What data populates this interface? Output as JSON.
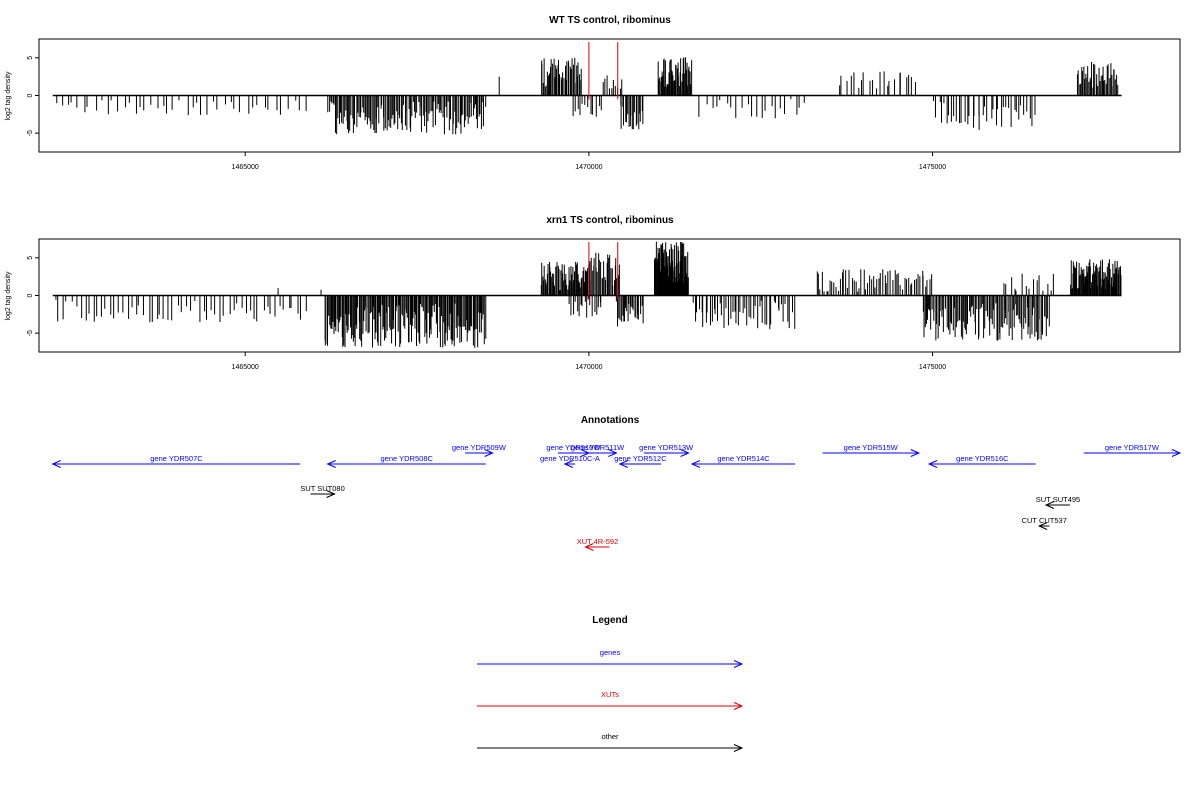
{
  "chart_data": [
    {
      "type": "bar",
      "title": "WT TS control, ribominus",
      "ylabel": "log2 tag density",
      "xlabel": "",
      "xlim": [
        1462000,
        1478600
      ],
      "ylim": [
        -7.5,
        7.5
      ],
      "yticks": [
        -5,
        0,
        5
      ],
      "xticks": [
        1465000,
        1470000,
        1475000
      ],
      "xtick_labels": [
        "1465000",
        "1470000",
        "1475000"
      ],
      "marker_lines": [
        1470000,
        1470420
      ],
      "marker_color": "#e00000",
      "grid": false,
      "regions": [
        {
          "start": 1462200,
          "end": 1465900,
          "sign": -1,
          "max": 2.6,
          "density": 45
        },
        {
          "start": 1466200,
          "end": 1468500,
          "sign": -1,
          "max": 5.2,
          "density": 130
        },
        {
          "start": 1468650,
          "end": 1468700,
          "sign": 1,
          "max": 2.6,
          "density": 1
        },
        {
          "start": 1469300,
          "end": 1469900,
          "sign": 1,
          "max": 5.0,
          "density": 40
        },
        {
          "start": 1469750,
          "end": 1470200,
          "sign": -1,
          "max": 3.0,
          "density": 12
        },
        {
          "start": 1470200,
          "end": 1470500,
          "sign": 1,
          "max": 2.8,
          "density": 10
        },
        {
          "start": 1470450,
          "end": 1470800,
          "sign": -1,
          "max": 4.5,
          "density": 20
        },
        {
          "start": 1471000,
          "end": 1471500,
          "sign": 1,
          "max": 5.2,
          "density": 45
        },
        {
          "start": 1471600,
          "end": 1473200,
          "sign": -1,
          "max": 3.2,
          "density": 22
        },
        {
          "start": 1473600,
          "end": 1474800,
          "sign": 1,
          "max": 3.2,
          "density": 22
        },
        {
          "start": 1475000,
          "end": 1476500,
          "sign": -1,
          "max": 4.6,
          "density": 40
        },
        {
          "start": 1477100,
          "end": 1477700,
          "sign": 1,
          "max": 4.5,
          "density": 40
        }
      ]
    },
    {
      "type": "bar",
      "title": "xrn1 TS control, ribominus",
      "ylabel": "log2 tag density",
      "xlabel": "",
      "xlim": [
        1462000,
        1478600
      ],
      "ylim": [
        -7.5,
        7.5
      ],
      "yticks": [
        -5,
        0,
        5
      ],
      "xticks": [
        1465000,
        1470000,
        1475000
      ],
      "xtick_labels": [
        "1465000",
        "1470000",
        "1475000"
      ],
      "marker_lines": [
        1470000,
        1470420
      ],
      "marker_color": "#e00000",
      "grid": false,
      "regions": [
        {
          "start": 1462200,
          "end": 1465900,
          "sign": -1,
          "max": 3.6,
          "density": 60
        },
        {
          "start": 1465400,
          "end": 1465500,
          "sign": 1,
          "max": 1.6,
          "density": 1
        },
        {
          "start": 1466100,
          "end": 1466200,
          "sign": 1,
          "max": 1.4,
          "density": 1
        },
        {
          "start": 1466150,
          "end": 1468500,
          "sign": -1,
          "max": 7.0,
          "density": 170
        },
        {
          "start": 1469300,
          "end": 1470000,
          "sign": 1,
          "max": 4.5,
          "density": 60
        },
        {
          "start": 1469700,
          "end": 1470200,
          "sign": -1,
          "max": 3.0,
          "density": 18
        },
        {
          "start": 1470000,
          "end": 1470450,
          "sign": 1,
          "max": 6.0,
          "density": 30
        },
        {
          "start": 1470400,
          "end": 1470800,
          "sign": -1,
          "max": 4.5,
          "density": 25
        },
        {
          "start": 1470950,
          "end": 1471450,
          "sign": 1,
          "max": 7.2,
          "density": 80
        },
        {
          "start": 1471500,
          "end": 1473000,
          "sign": -1,
          "max": 4.5,
          "density": 50
        },
        {
          "start": 1473300,
          "end": 1475000,
          "sign": 1,
          "max": 3.5,
          "density": 60
        },
        {
          "start": 1474850,
          "end": 1476700,
          "sign": -1,
          "max": 6.0,
          "density": 110
        },
        {
          "start": 1476000,
          "end": 1476800,
          "sign": 1,
          "max": 3.0,
          "density": 15
        },
        {
          "start": 1477000,
          "end": 1477750,
          "sign": 1,
          "max": 5.0,
          "density": 80
        }
      ]
    }
  ],
  "annotations": {
    "title": "Annotations",
    "xlim": [
      1462000,
      1478600
    ],
    "items": [
      {
        "label": "gene YDR507C",
        "start": 1465800,
        "end": 1462200,
        "row": 1,
        "color": "#0000ff"
      },
      {
        "label": "gene YDR508C",
        "start": 1468500,
        "end": 1466200,
        "row": 1,
        "color": "#0000ff"
      },
      {
        "label": "gene YDR509W",
        "start": 1468200,
        "end": 1468600,
        "row": 0,
        "color": "#0000ff"
      },
      {
        "label": "gene YDR510W",
        "start": 1469550,
        "end": 1470000,
        "row": 0,
        "color": "#0000ff"
      },
      {
        "label": "gene YDR511W",
        "start": 1469850,
        "end": 1470400,
        "row": 0,
        "color": "#0000ff"
      },
      {
        "label": "gene YDR510C-A",
        "start": 1469800,
        "end": 1469650,
        "row": 1,
        "color": "#0000ff"
      },
      {
        "label": "gene YDR512C",
        "start": 1471050,
        "end": 1470450,
        "row": 1,
        "color": "#0000ff"
      },
      {
        "label": "gene YDR513W",
        "start": 1470800,
        "end": 1471450,
        "row": 0,
        "color": "#0000ff"
      },
      {
        "label": "gene YDR514C",
        "start": 1473000,
        "end": 1471500,
        "row": 1,
        "color": "#0000ff"
      },
      {
        "label": "gene YDR515W",
        "start": 1473400,
        "end": 1474800,
        "row": 0,
        "color": "#0000ff"
      },
      {
        "label": "gene YDR516C",
        "start": 1476500,
        "end": 1474950,
        "row": 1,
        "color": "#0000ff"
      },
      {
        "label": "gene YDR517W",
        "start": 1477200,
        "end": 1478600,
        "row": 0,
        "color": "#0000ff"
      },
      {
        "label": "SUT SUT080",
        "start": 1465950,
        "end": 1466300,
        "row": 3,
        "color": "#000000"
      },
      {
        "label": "SUT SUT495",
        "start": 1477000,
        "end": 1476650,
        "row": 4,
        "color": "#000000"
      },
      {
        "label": "CUT CUT537",
        "start": 1476700,
        "end": 1476550,
        "row": 5,
        "color": "#000000"
      },
      {
        "label": "XUT 4R-592",
        "start": 1470300,
        "end": 1469950,
        "row": 7,
        "color": "#e00000"
      }
    ]
  },
  "legend": {
    "title": "Legend",
    "items": [
      {
        "label": "genes",
        "color": "#0000ff"
      },
      {
        "label": "XUTs",
        "color": "#e00000"
      },
      {
        "label": "other",
        "color": "#000000"
      }
    ]
  }
}
